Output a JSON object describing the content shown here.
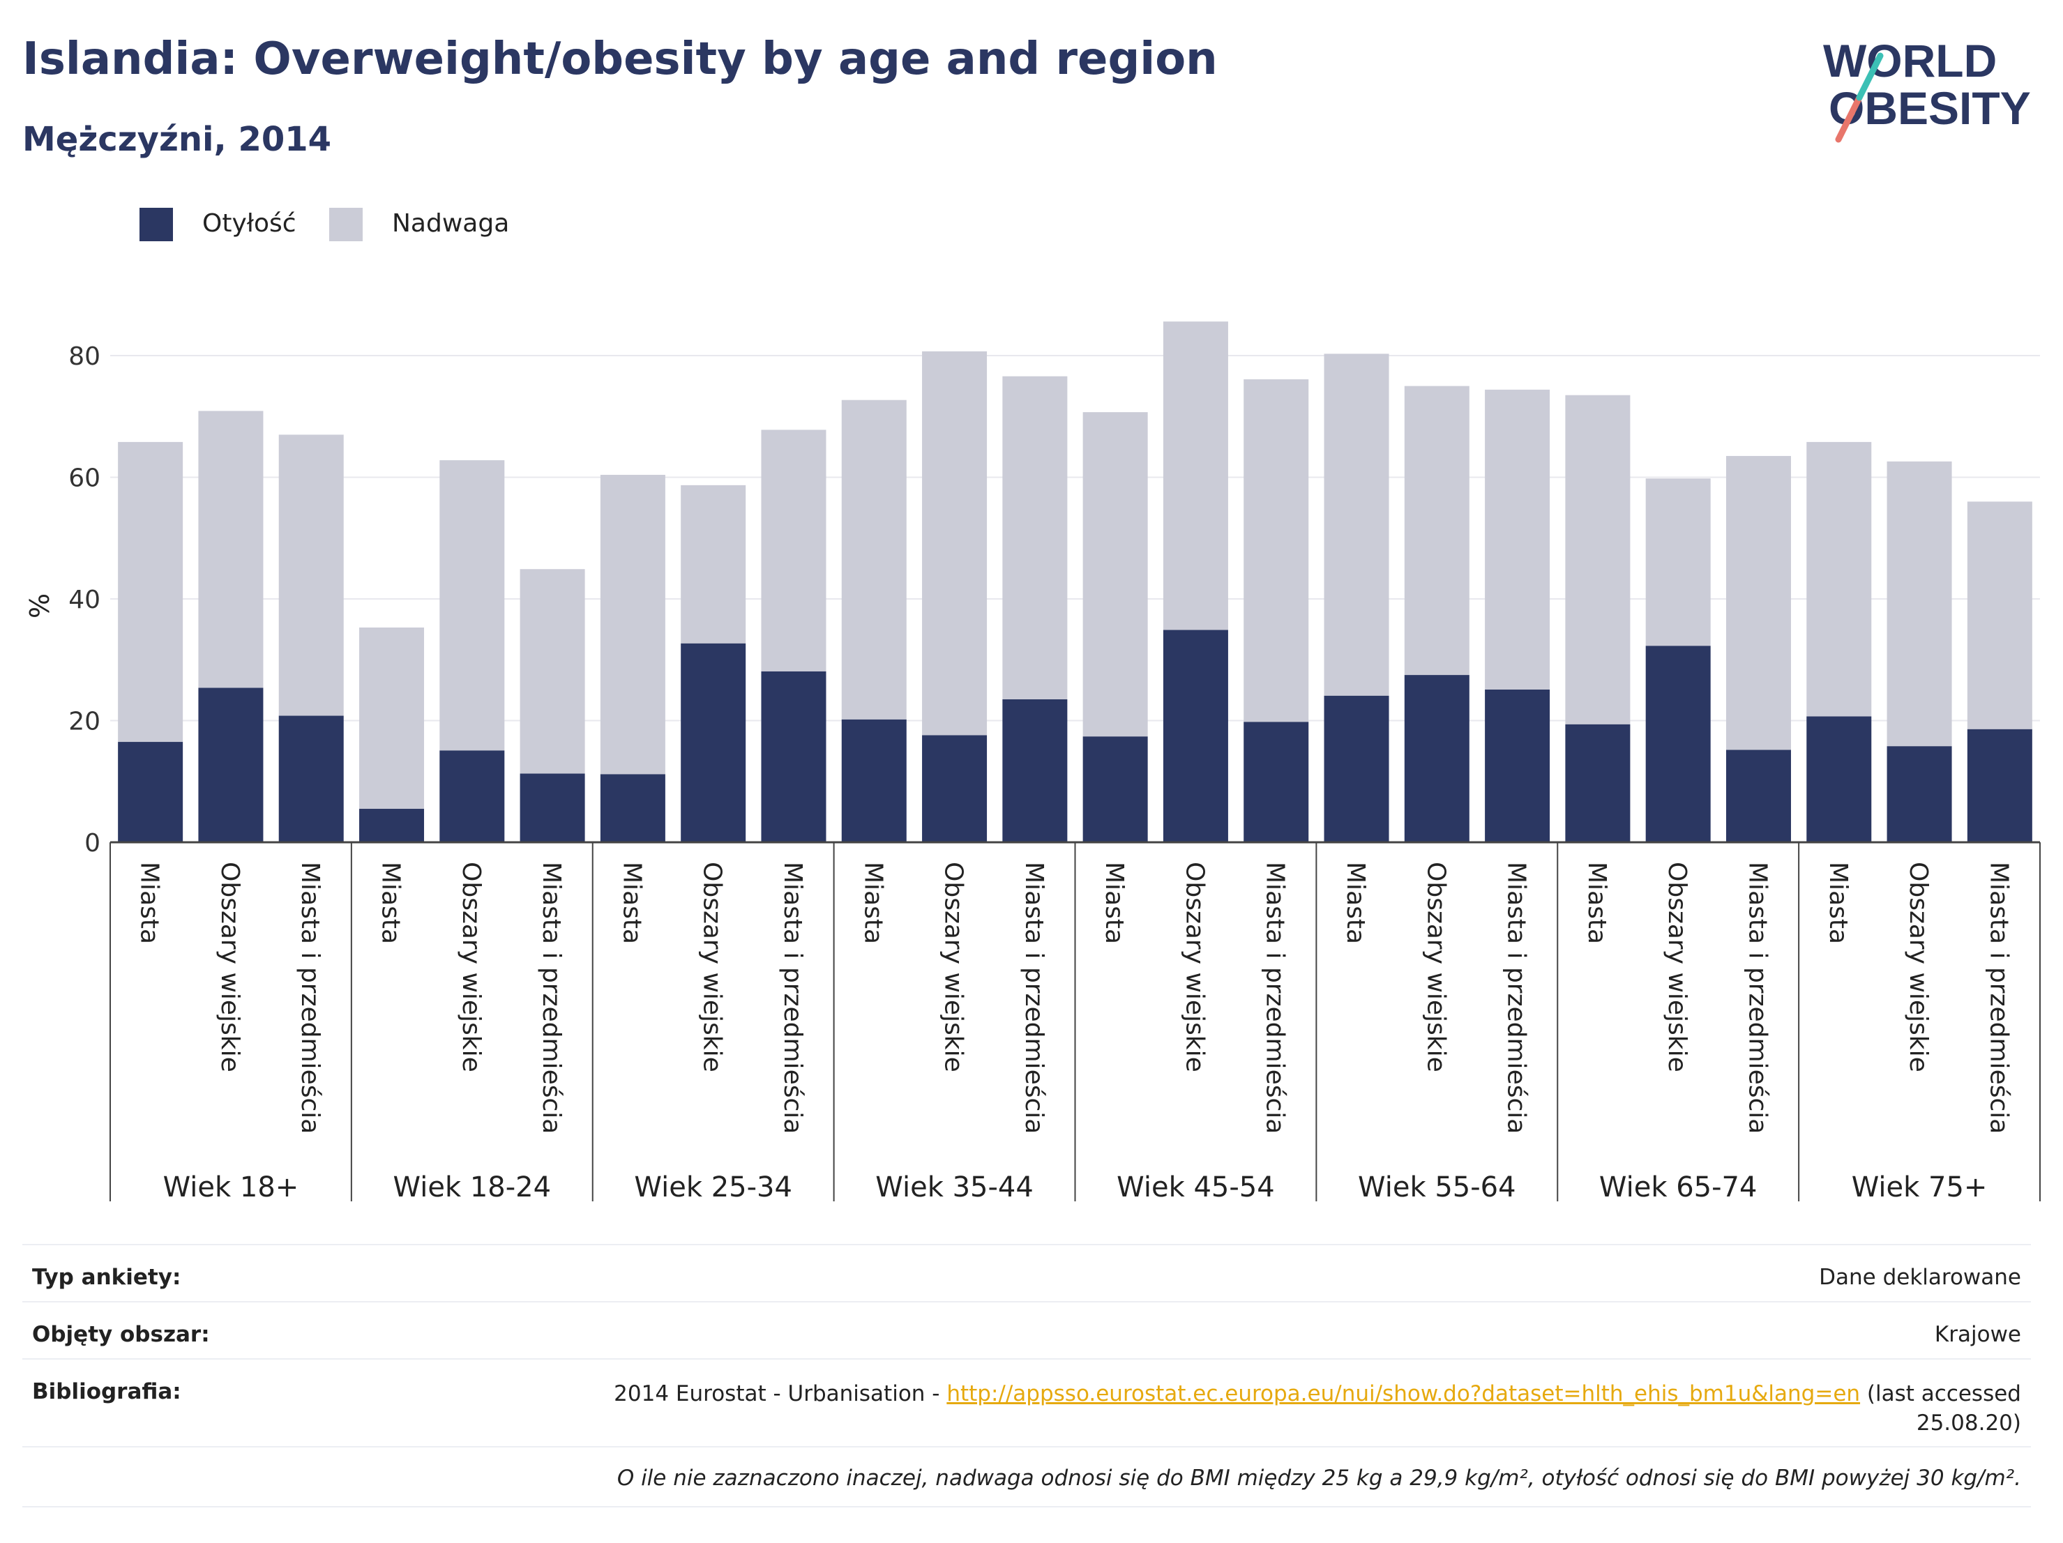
{
  "header": {
    "title": "Islandia: Overweight/obesity by age and region",
    "subtitle": "Mężczyźni, 2014"
  },
  "logo": {
    "line1": "WORLD",
    "line2": "OBESITY"
  },
  "legend": [
    {
      "label": "Otyłość",
      "color": "#2b3762"
    },
    {
      "label": "Nadwaga",
      "color": "#cbccd7"
    }
  ],
  "chart_data": {
    "type": "bar",
    "stacked": true,
    "ylabel": "%",
    "ylim": [
      0,
      90
    ],
    "yticks": [
      0,
      20,
      40,
      60,
      80
    ],
    "grid": true,
    "legend_position": "top-left",
    "groups": [
      {
        "label": "Wiek 18+",
        "categories": [
          "Miasta",
          "Obszary wiejskie",
          "Miasta i przedmieścia"
        ]
      },
      {
        "label": "Wiek 18-24",
        "categories": [
          "Miasta",
          "Obszary wiejskie",
          "Miasta i przedmieścia"
        ]
      },
      {
        "label": "Wiek 25-34",
        "categories": [
          "Miasta",
          "Obszary wiejskie",
          "Miasta i przedmieścia"
        ]
      },
      {
        "label": "Wiek 35-44",
        "categories": [
          "Miasta",
          "Obszary wiejskie",
          "Miasta i przedmieścia"
        ]
      },
      {
        "label": "Wiek 45-54",
        "categories": [
          "Miasta",
          "Obszary wiejskie",
          "Miasta i przedmieścia"
        ]
      },
      {
        "label": "Wiek 55-64",
        "categories": [
          "Miasta",
          "Obszary wiejskie",
          "Miasta i przedmieścia"
        ]
      },
      {
        "label": "Wiek 65-74",
        "categories": [
          "Miasta",
          "Obszary wiejskie",
          "Miasta i przedmieścia"
        ]
      },
      {
        "label": "Wiek 75+",
        "categories": [
          "Miasta",
          "Obszary wiejskie",
          "Miasta i przedmieścia"
        ]
      }
    ],
    "series": [
      {
        "name": "Otyłość",
        "color": "#2b3762",
        "values": [
          16.5,
          25.4,
          20.8,
          5.5,
          15.1,
          11.3,
          11.2,
          32.7,
          28.1,
          20.2,
          17.6,
          23.5,
          17.4,
          34.9,
          19.8,
          24.1,
          27.5,
          25.1,
          19.4,
          32.3,
          15.2,
          20.7,
          15.8,
          18.6
        ]
      },
      {
        "name": "Nadwaga",
        "color": "#cbccd7",
        "values": [
          49.3,
          45.5,
          46.2,
          29.8,
          47.7,
          33.6,
          49.2,
          26.0,
          39.7,
          52.5,
          63.1,
          53.1,
          53.3,
          50.7,
          56.3,
          56.2,
          47.5,
          49.3,
          54.1,
          27.5,
          48.3,
          45.1,
          46.8,
          37.4
        ]
      }
    ]
  },
  "info": {
    "survey_type_label": "Typ ankiety:",
    "survey_type_value": "Dane deklarowane",
    "coverage_label": "Objęty obszar:",
    "coverage_value": "Krajowe",
    "bibliography_label": "Bibliografia:",
    "bibliography_prefix": "2014 Eurostat - Urbanisation - ",
    "bibliography_link": "http://appsso.eurostat.ec.europa.eu/nui/show.do?dataset=hlth_ehis_bm1u&lang=en",
    "bibliography_suffix_1": " (last accessed",
    "bibliography_suffix_2": "25.08.20)",
    "note": "O ile nie zaznaczono inaczej, nadwaga odnosi się do BMI między 25 kg a 29,9 kg/m², otyłość odnosi się do BMI powyżej 30 kg/m²."
  }
}
